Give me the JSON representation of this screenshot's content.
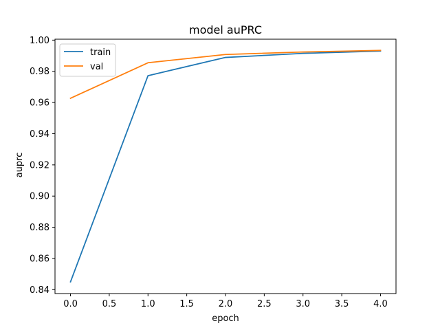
{
  "chart_data": {
    "type": "line",
    "title": "model auPRC",
    "xlabel": "epoch",
    "ylabel": "auprc",
    "x": [
      0,
      1,
      2,
      3,
      4
    ],
    "series": [
      {
        "name": "train",
        "color": "#1f77b4",
        "values": [
          0.845,
          0.9772,
          0.9889,
          0.9915,
          0.993
        ]
      },
      {
        "name": "val",
        "color": "#ff7f0e",
        "values": [
          0.9627,
          0.9855,
          0.9908,
          0.9924,
          0.9934
        ]
      }
    ],
    "xlim": [
      -0.2,
      4.2
    ],
    "ylim": [
      0.8375,
      1.0006
    ],
    "xticks": [
      0.0,
      0.5,
      1.0,
      1.5,
      2.0,
      2.5,
      3.0,
      3.5,
      4.0
    ],
    "xtick_labels": [
      "0.0",
      "0.5",
      "1.0",
      "1.5",
      "2.0",
      "2.5",
      "3.0",
      "3.5",
      "4.0"
    ],
    "yticks": [
      0.84,
      0.86,
      0.88,
      0.9,
      0.92,
      0.94,
      0.96,
      0.98,
      1.0
    ],
    "ytick_labels": [
      "0.84",
      "0.86",
      "0.88",
      "0.90",
      "0.92",
      "0.94",
      "0.96",
      "0.98",
      "1.00"
    ],
    "grid": false,
    "legend_position": "top-left"
  }
}
